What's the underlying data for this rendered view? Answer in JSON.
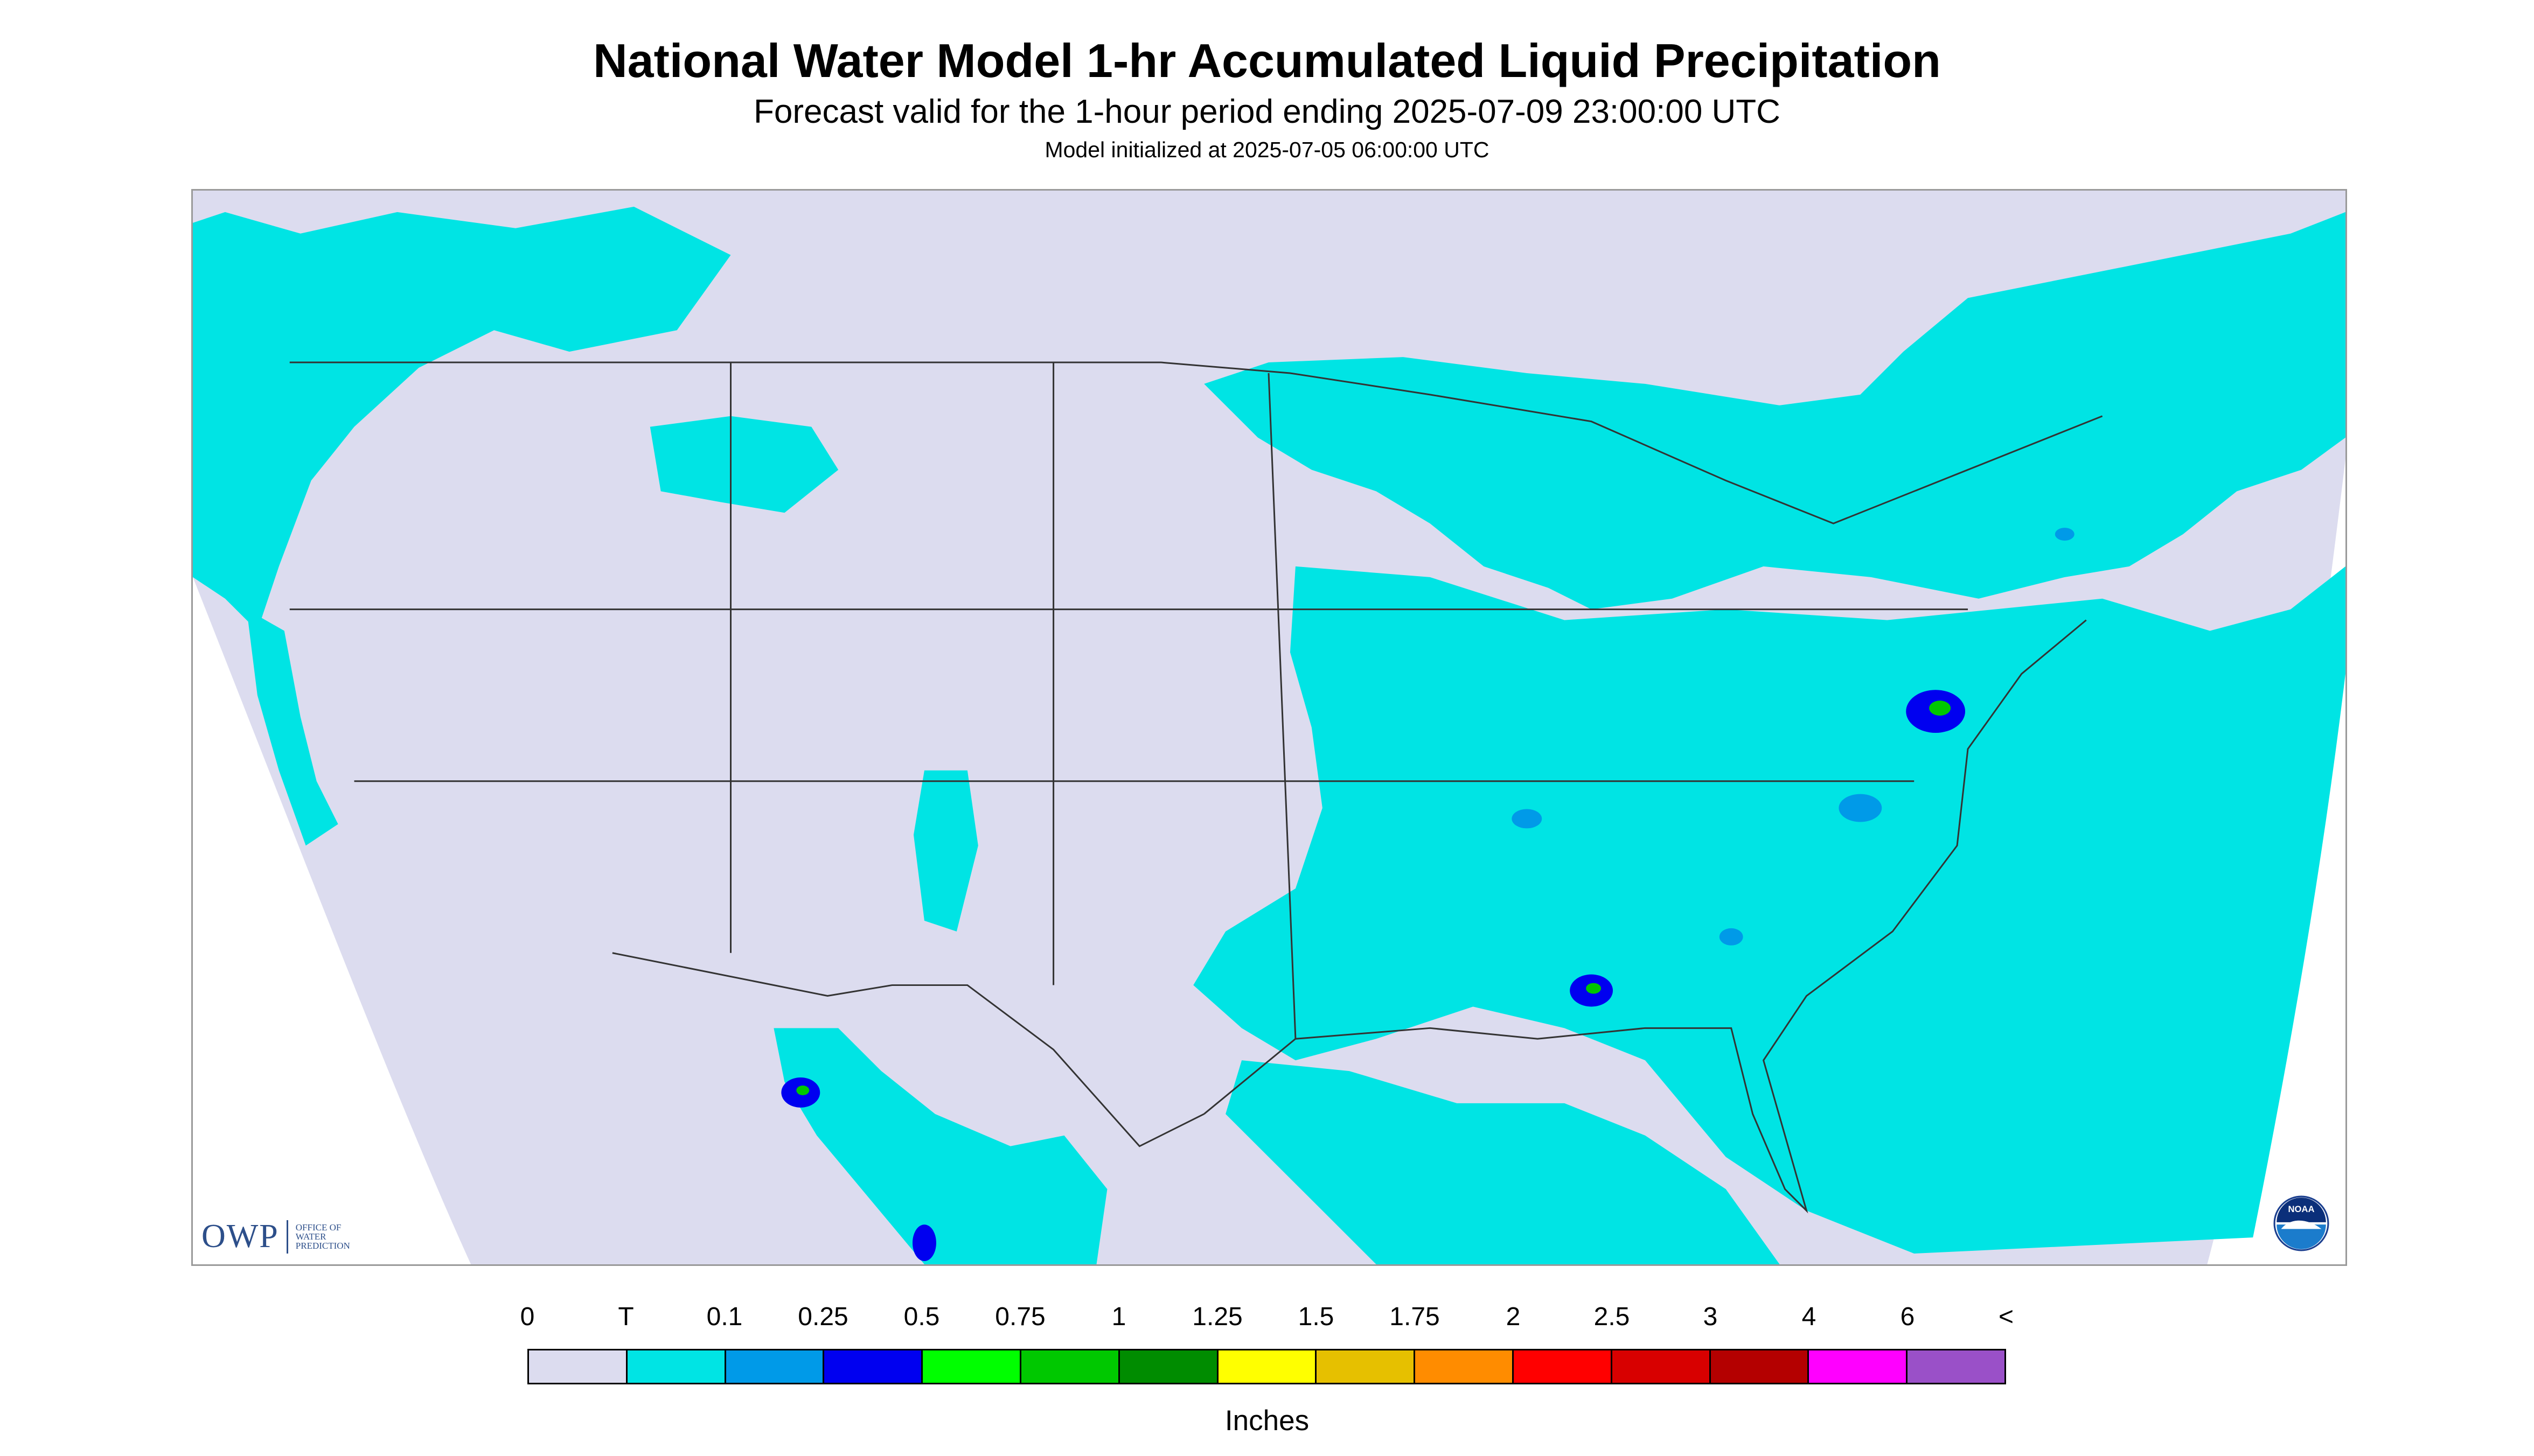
{
  "header": {
    "title": "National Water Model 1-hr Accumulated Liquid Precipitation",
    "subtitle": "Forecast valid for the 1-hour period ending 2025-07-09 23:00:00 UTC",
    "init_line": "Model initialized at 2025-07-05 06:00:00 UTC"
  },
  "map": {
    "background_color": "#dcdcef",
    "outside_color": "#ffffff",
    "boundary_color": "#333333",
    "logo_left": {
      "mark": "OWP",
      "lines": [
        "OFFICE OF",
        "WATER",
        "PREDICTION"
      ]
    },
    "logo_right_icon": "noaa-seal-icon"
  },
  "legend": {
    "labels": [
      "0",
      "T",
      "0.1",
      "0.25",
      "0.5",
      "0.75",
      "1",
      "1.25",
      "1.5",
      "1.75",
      "2",
      "2.5",
      "3",
      "4",
      "6",
      "<"
    ],
    "colors": [
      "#dcdcef",
      "#00e4e4",
      "#009ae8",
      "#0000f0",
      "#00ff00",
      "#00c800",
      "#008c00",
      "#ffff00",
      "#e6c000",
      "#ff8c00",
      "#ff0000",
      "#d80000",
      "#b40000",
      "#ff00ff",
      "#9a50c8"
    ],
    "units": "Inches"
  }
}
